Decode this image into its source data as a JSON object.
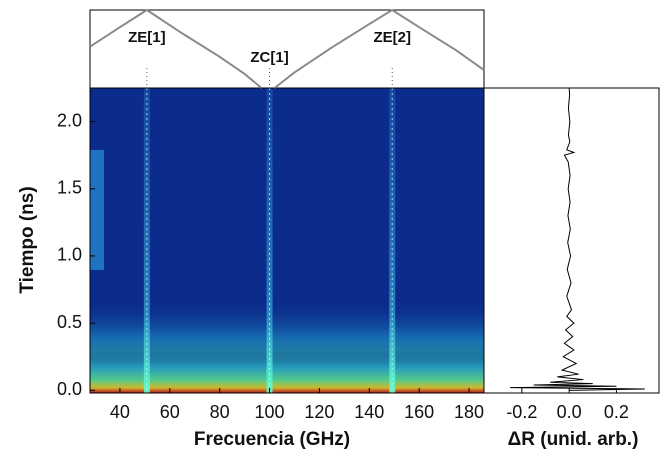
{
  "chart_data": [
    {
      "type": "heatmap",
      "xlabel": "Frecuencia (GHz)",
      "ylabel": "Tiempo (ns)",
      "xlim": [
        28,
        186
      ],
      "ylim": [
        -0.02,
        2.25
      ],
      "xticks": [
        40,
        60,
        80,
        100,
        120,
        140,
        160,
        180
      ],
      "yticks": [
        {
          "value": 0,
          "label": "0.0"
        },
        0.5,
        {
          "value": 1,
          "label": "1.0"
        },
        1.5,
        {
          "value": 2,
          "label": "2.0"
        }
      ],
      "markers": [
        50.8,
        100,
        149.2
      ]
    },
    {
      "type": "line",
      "xlim": [
        28,
        186
      ],
      "ylim": [
        0,
        1
      ],
      "color": "#8a8a8a",
      "annotations": [
        {
          "text": "ZE[1]",
          "x": 50.8
        },
        {
          "text": "ZC[1]",
          "x": 100
        },
        {
          "text": "ZE[2]",
          "x": 149.2
        }
      ],
      "series": [
        {
          "x": [
            28,
            40,
            50.8,
            65,
            80,
            90,
            96.8
          ],
          "values": [
            0.53,
            0.78,
            1.0,
            0.7,
            0.4,
            0.18,
            0.0
          ]
        },
        {
          "x": [
            102,
            110,
            125,
            140,
            149.2,
            160,
            175,
            186
          ],
          "values": [
            0.0,
            0.2,
            0.52,
            0.82,
            1.0,
            0.78,
            0.48,
            0.23
          ]
        }
      ]
    },
    {
      "type": "line",
      "orientation": "horizontal",
      "xlabel": "ΔR (unid. arb.)",
      "color": "#000000",
      "xlim": [
        -0.36,
        0.38
      ],
      "xticks": [
        -0.2,
        {
          "value": 0,
          "label": "0.0"
        },
        0.2
      ],
      "ylim": [
        -0.02,
        2.25
      ],
      "time": [
        0,
        0.01,
        0.02,
        0.03,
        0.04,
        0.05,
        0.06,
        0.08,
        0.1,
        0.12,
        0.15,
        0.2,
        0.25,
        0.3,
        0.35,
        0.4,
        0.45,
        0.5,
        0.55,
        0.6,
        0.7,
        0.8,
        0.9,
        1.0,
        1.1,
        1.2,
        1.3,
        1.4,
        1.5,
        1.6,
        1.7,
        1.75,
        1.77,
        1.79,
        1.85,
        1.9,
        2.0,
        2.1,
        2.2,
        2.25
      ],
      "values": [
        0,
        0.32,
        -0.25,
        0.2,
        -0.15,
        0.1,
        -0.08,
        0.06,
        -0.05,
        0.04,
        -0.03,
        0.03,
        -0.025,
        0.02,
        -0.02,
        0.015,
        -0.015,
        0.02,
        -0.01,
        0.01,
        -0.01,
        0.008,
        -0.008,
        0.006,
        -0.006,
        0.005,
        -0.005,
        0.004,
        -0.004,
        0.004,
        -0.004,
        -0.02,
        0.02,
        -0.01,
        0.003,
        -0.003,
        0.003,
        -0.003,
        0.002,
        0
      ]
    }
  ]
}
